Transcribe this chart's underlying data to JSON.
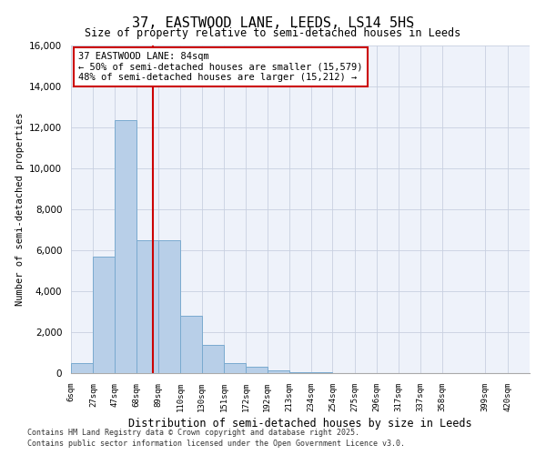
{
  "title": "37, EASTWOOD LANE, LEEDS, LS14 5HS",
  "subtitle": "Size of property relative to semi-detached houses in Leeds",
  "xlabel": "Distribution of semi-detached houses by size in Leeds",
  "ylabel": "Number of semi-detached properties",
  "bins": [
    "6sqm",
    "27sqm",
    "47sqm",
    "68sqm",
    "89sqm",
    "110sqm",
    "130sqm",
    "151sqm",
    "172sqm",
    "192sqm",
    "213sqm",
    "234sqm",
    "254sqm",
    "275sqm",
    "296sqm",
    "317sqm",
    "337sqm",
    "358sqm",
    "399sqm",
    "420sqm"
  ],
  "bin_edges": [
    6,
    27,
    47,
    68,
    89,
    110,
    130,
    151,
    172,
    192,
    213,
    234,
    254,
    275,
    296,
    317,
    337,
    358,
    399,
    420
  ],
  "values": [
    480,
    5700,
    12350,
    6500,
    6480,
    2800,
    1380,
    480,
    290,
    145,
    60,
    30,
    18,
    12,
    5,
    4,
    3,
    3,
    2
  ],
  "bar_color": "#b8cfe8",
  "bar_edge_color": "#7aaacf",
  "vline_x": 84,
  "vline_color": "#cc0000",
  "annotation_text": "37 EASTWOOD LANE: 84sqm\n← 50% of semi-detached houses are smaller (15,579)\n48% of semi-detached houses are larger (15,212) →",
  "annotation_box_color": "#cc0000",
  "annotation_text_fontsize": 7.5,
  "ylim": [
    0,
    16000
  ],
  "yticks": [
    0,
    2000,
    4000,
    6000,
    8000,
    10000,
    12000,
    14000,
    16000
  ],
  "footnote1": "Contains HM Land Registry data © Crown copyright and database right 2025.",
  "footnote2": "Contains public sector information licensed under the Open Government Licence v3.0.",
  "bg_color": "#eef2fa",
  "grid_color": "#c8d0e0"
}
